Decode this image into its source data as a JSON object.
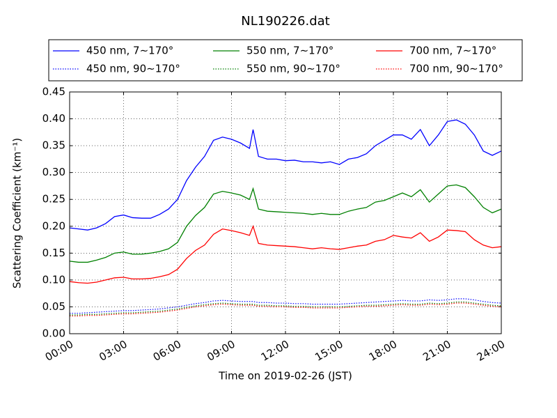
{
  "chart_data": {
    "type": "line",
    "title": "NL190226.dat",
    "xlabel": "Time on 2019-02-26 (JST)",
    "ylabel": "Scattering Coefficient (km⁻¹)",
    "grid": true,
    "legend": "top",
    "x": [
      0,
      0.5,
      1,
      1.5,
      2,
      2.5,
      3,
      3.5,
      4,
      4.5,
      5,
      5.5,
      6,
      6.5,
      7,
      7.5,
      8,
      8.5,
      9,
      9.5,
      10,
      10.2,
      10.5,
      11,
      11.5,
      12,
      12.5,
      13,
      13.5,
      14,
      14.5,
      15,
      15.5,
      16,
      16.5,
      17,
      17.5,
      18,
      18.5,
      19,
      19.5,
      20,
      20.5,
      21,
      21.5,
      22,
      22.5,
      23,
      23.5,
      24
    ],
    "xlim": [
      0,
      24
    ],
    "xticks": [
      {
        "value": 0,
        "label": "00:00"
      },
      {
        "value": 3,
        "label": "03:00"
      },
      {
        "value": 6,
        "label": "06:00"
      },
      {
        "value": 9,
        "label": "09:00"
      },
      {
        "value": 12,
        "label": "12:00"
      },
      {
        "value": 15,
        "label": "15:00"
      },
      {
        "value": 18,
        "label": "18:00"
      },
      {
        "value": 21,
        "label": "21:00"
      },
      {
        "value": 24,
        "label": "24:00"
      }
    ],
    "ylim": [
      0,
      0.45
    ],
    "yticks": [
      {
        "value": 0,
        "label": "0.00"
      },
      {
        "value": 0.05,
        "label": "0.05"
      },
      {
        "value": 0.1,
        "label": "0.10"
      },
      {
        "value": 0.15,
        "label": "0.15"
      },
      {
        "value": 0.2,
        "label": "0.20"
      },
      {
        "value": 0.25,
        "label": "0.25"
      },
      {
        "value": 0.3,
        "label": "0.30"
      },
      {
        "value": 0.35,
        "label": "0.35"
      },
      {
        "value": 0.4,
        "label": "0.40"
      },
      {
        "value": 0.45,
        "label": "0.45"
      }
    ],
    "series": [
      {
        "name": "450 nm, 7∼170°",
        "color": "#0000ff",
        "style": "solid",
        "values": [
          0.197,
          0.195,
          0.193,
          0.197,
          0.205,
          0.218,
          0.221,
          0.216,
          0.215,
          0.215,
          0.222,
          0.232,
          0.25,
          0.285,
          0.31,
          0.33,
          0.36,
          0.366,
          0.362,
          0.355,
          0.345,
          0.38,
          0.33,
          0.325,
          0.325,
          0.322,
          0.323,
          0.32,
          0.32,
          0.318,
          0.32,
          0.315,
          0.325,
          0.328,
          0.335,
          0.35,
          0.36,
          0.37,
          0.37,
          0.362,
          0.38,
          0.35,
          0.37,
          0.395,
          0.398,
          0.39,
          0.37,
          0.34,
          0.332,
          0.34
        ]
      },
      {
        "name": "450 nm, 90∼170°",
        "color": "#0000ff",
        "style": "dotted",
        "values": [
          0.038,
          0.038,
          0.039,
          0.04,
          0.041,
          0.042,
          0.043,
          0.043,
          0.044,
          0.045,
          0.046,
          0.048,
          0.05,
          0.053,
          0.056,
          0.058,
          0.061,
          0.062,
          0.061,
          0.06,
          0.06,
          0.06,
          0.058,
          0.058,
          0.057,
          0.057,
          0.056,
          0.056,
          0.055,
          0.055,
          0.055,
          0.055,
          0.056,
          0.057,
          0.058,
          0.059,
          0.06,
          0.061,
          0.062,
          0.061,
          0.061,
          0.063,
          0.062,
          0.063,
          0.065,
          0.065,
          0.063,
          0.06,
          0.058,
          0.057
        ]
      },
      {
        "name": "550 nm, 7∼170°",
        "color": "#008000",
        "style": "solid",
        "values": [
          0.135,
          0.133,
          0.133,
          0.137,
          0.142,
          0.15,
          0.152,
          0.148,
          0.148,
          0.15,
          0.153,
          0.158,
          0.17,
          0.2,
          0.22,
          0.235,
          0.26,
          0.265,
          0.262,
          0.258,
          0.25,
          0.27,
          0.232,
          0.228,
          0.227,
          0.226,
          0.225,
          0.224,
          0.222,
          0.224,
          0.222,
          0.222,
          0.228,
          0.232,
          0.235,
          0.245,
          0.248,
          0.255,
          0.262,
          0.255,
          0.268,
          0.245,
          0.26,
          0.275,
          0.277,
          0.272,
          0.255,
          0.235,
          0.225,
          0.232
        ]
      },
      {
        "name": "550 nm, 90∼170°",
        "color": "#008000",
        "style": "dotted",
        "values": [
          0.035,
          0.035,
          0.036,
          0.036,
          0.037,
          0.038,
          0.039,
          0.039,
          0.04,
          0.041,
          0.042,
          0.044,
          0.046,
          0.049,
          0.052,
          0.054,
          0.056,
          0.057,
          0.056,
          0.055,
          0.055,
          0.055,
          0.053,
          0.053,
          0.052,
          0.052,
          0.051,
          0.051,
          0.05,
          0.05,
          0.05,
          0.05,
          0.051,
          0.052,
          0.053,
          0.053,
          0.054,
          0.055,
          0.056,
          0.055,
          0.055,
          0.057,
          0.056,
          0.057,
          0.059,
          0.059,
          0.057,
          0.055,
          0.053,
          0.052
        ]
      },
      {
        "name": "700 nm, 7∼170°",
        "color": "#ff0000",
        "style": "solid",
        "values": [
          0.097,
          0.095,
          0.094,
          0.096,
          0.1,
          0.104,
          0.105,
          0.102,
          0.102,
          0.103,
          0.106,
          0.11,
          0.12,
          0.14,
          0.155,
          0.165,
          0.185,
          0.195,
          0.192,
          0.188,
          0.183,
          0.2,
          0.168,
          0.165,
          0.164,
          0.163,
          0.162,
          0.16,
          0.158,
          0.16,
          0.158,
          0.157,
          0.16,
          0.163,
          0.165,
          0.172,
          0.175,
          0.183,
          0.18,
          0.178,
          0.188,
          0.172,
          0.18,
          0.193,
          0.192,
          0.19,
          0.175,
          0.165,
          0.16,
          0.162
        ]
      },
      {
        "name": "700 nm, 90∼170°",
        "color": "#ff0000",
        "style": "dotted",
        "values": [
          0.033,
          0.033,
          0.034,
          0.034,
          0.035,
          0.036,
          0.037,
          0.037,
          0.038,
          0.039,
          0.04,
          0.042,
          0.044,
          0.047,
          0.05,
          0.052,
          0.054,
          0.055,
          0.054,
          0.053,
          0.053,
          0.053,
          0.051,
          0.051,
          0.05,
          0.05,
          0.049,
          0.049,
          0.048,
          0.048,
          0.048,
          0.048,
          0.049,
          0.05,
          0.051,
          0.051,
          0.052,
          0.053,
          0.054,
          0.053,
          0.053,
          0.055,
          0.054,
          0.055,
          0.057,
          0.057,
          0.055,
          0.053,
          0.051,
          0.05
        ]
      }
    ]
  }
}
